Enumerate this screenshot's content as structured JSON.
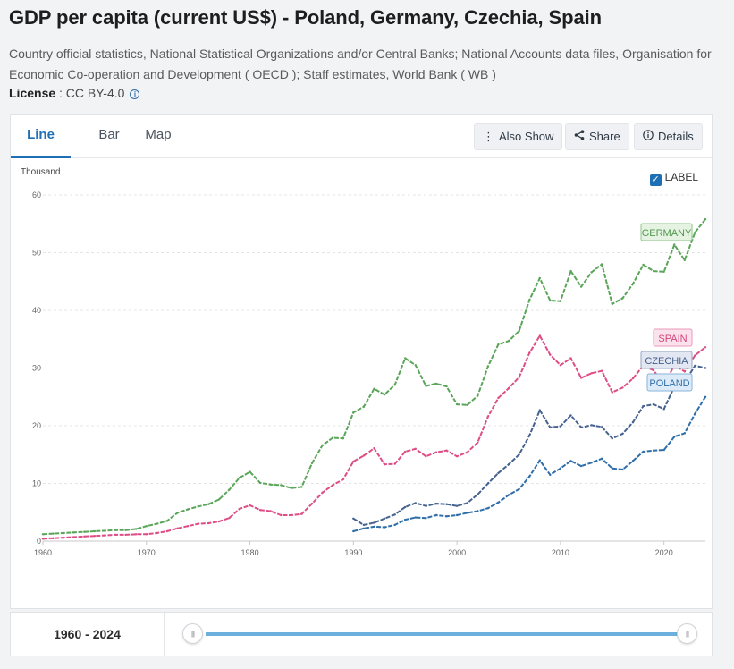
{
  "page": {
    "title": "GDP per capita (current US$) - Poland, Germany, Czechia, Spain",
    "source": "Country official statistics, National Statistical Organizations and/or Central Banks; National Accounts data files, Organisation for Economic Co-operation and Development ( OECD ); Staff estimates, World Bank ( WB )",
    "license_label": "License",
    "license_value": " : CC BY-4.0"
  },
  "tabs": [
    "Line",
    "Bar",
    "Map"
  ],
  "toolbar": {
    "also_show": "Also Show",
    "share": "Share",
    "details": "Details"
  },
  "label_toggle": "LABEL",
  "range": {
    "start": "1960",
    "sep": " - ",
    "end": "2024"
  },
  "chart_data": {
    "type": "line",
    "ylabel": "Thousand",
    "ylim": [
      0,
      60
    ],
    "yticks": [
      0,
      10,
      20,
      30,
      40,
      50,
      60
    ],
    "xlim": [
      1960,
      2024
    ],
    "xticks": [
      1960,
      1970,
      1980,
      1990,
      2000,
      2010,
      2020
    ],
    "series": [
      {
        "name": "GERMANY",
        "color": "#5ba55a",
        "start": 1960,
        "values": [
          1.2,
          1.3,
          1.4,
          1.5,
          1.6,
          1.7,
          1.8,
          1.9,
          1.9,
          2.1,
          2.6,
          3.0,
          3.5,
          4.9,
          5.5,
          6.0,
          6.4,
          7.2,
          8.9,
          11.0,
          12.0,
          10.1,
          9.8,
          9.7,
          9.2,
          9.4,
          13.5,
          16.6,
          17.9,
          17.8,
          22.3,
          23.3,
          26.4,
          25.4,
          27.1,
          31.7,
          30.5,
          26.9,
          27.3,
          26.8,
          23.7,
          23.6,
          25.2,
          30.3,
          34.1,
          34.7,
          36.4,
          41.8,
          45.6,
          41.7,
          41.6,
          46.8,
          44.1,
          46.6,
          48.0,
          41.1,
          42.1,
          44.6,
          47.9,
          46.8,
          46.7,
          51.4,
          48.7,
          53.5,
          55.8
        ]
      },
      {
        "name": "SPAIN",
        "color": "#dd4e86",
        "start": 1960,
        "values": [
          0.4,
          0.5,
          0.6,
          0.7,
          0.8,
          0.9,
          1.0,
          1.1,
          1.1,
          1.2,
          1.2,
          1.4,
          1.7,
          2.2,
          2.6,
          3.0,
          3.1,
          3.4,
          4.0,
          5.6,
          6.2,
          5.4,
          5.2,
          4.5,
          4.5,
          4.7,
          6.5,
          8.4,
          9.7,
          10.7,
          13.8,
          14.8,
          16.1,
          13.3,
          13.4,
          15.5,
          16.0,
          14.7,
          15.4,
          15.7,
          14.7,
          15.4,
          17.1,
          21.6,
          24.8,
          26.5,
          28.4,
          32.6,
          35.6,
          32.3,
          30.5,
          31.7,
          28.3,
          29.1,
          29.5,
          25.8,
          26.6,
          28.2,
          30.4,
          29.6,
          27.1,
          30.5,
          29.4,
          32.2,
          33.6
        ]
      },
      {
        "name": "CZECHIA",
        "color": "#46638f",
        "start": 1990,
        "values": [
          3.9,
          2.8,
          3.2,
          3.9,
          4.6,
          5.9,
          6.6,
          6.1,
          6.5,
          6.4,
          6.1,
          6.6,
          8.1,
          10.0,
          11.8,
          13.3,
          15.0,
          18.3,
          22.7,
          19.7,
          19.9,
          21.8,
          19.7,
          20.1,
          19.8,
          17.8,
          18.6,
          20.6,
          23.4,
          23.7,
          22.9,
          26.8,
          27.6,
          30.4,
          30.0
        ]
      },
      {
        "name": "POLAND",
        "color": "#2f6ea8",
        "start": 1990,
        "values": [
          1.7,
          2.2,
          2.5,
          2.4,
          2.8,
          3.7,
          4.1,
          4.0,
          4.5,
          4.3,
          4.5,
          4.9,
          5.2,
          5.7,
          6.7,
          8.0,
          9.0,
          11.2,
          14.0,
          11.5,
          12.6,
          13.9,
          13.0,
          13.6,
          14.3,
          12.6,
          12.4,
          13.9,
          15.5,
          15.7,
          15.8,
          18.1,
          18.7,
          22.1,
          25.0
        ]
      }
    ]
  }
}
